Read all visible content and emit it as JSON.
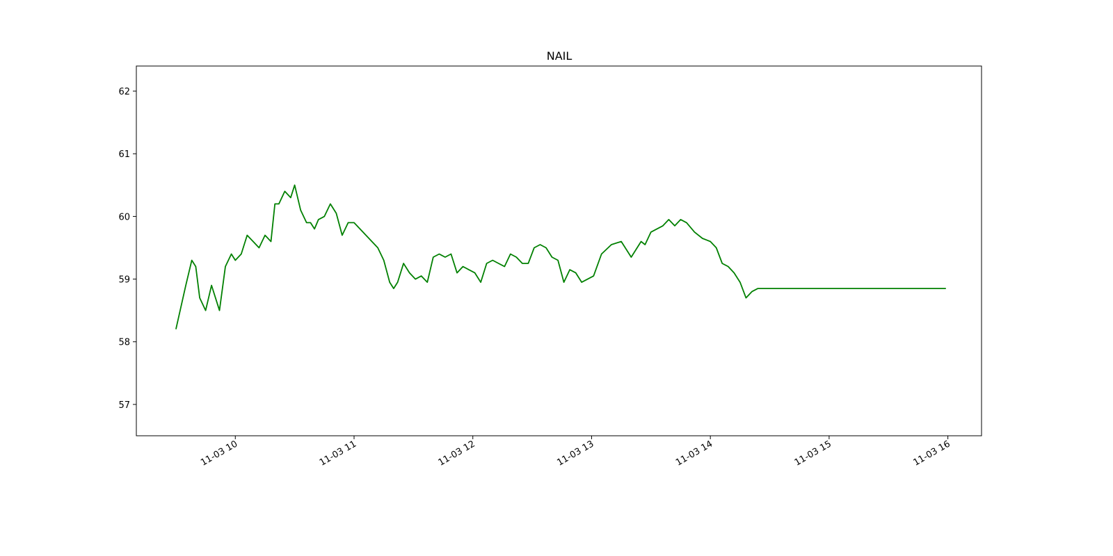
{
  "chart_data": {
    "type": "line",
    "title": "NAIL",
    "xlabel": "",
    "ylabel": "",
    "x_ticks": [
      "11-03 10",
      "11-03 11",
      "11-03 12",
      "11-03 13",
      "11-03 14",
      "11-03 15",
      "11-03 16"
    ],
    "x_range": [
      "11-03 09:10",
      "11-03 16:17"
    ],
    "ylim": [
      56.5,
      62.4
    ],
    "y_ticks": [
      "57",
      "58",
      "59",
      "60",
      "61",
      "62"
    ],
    "grid": false,
    "color": "#008000",
    "series": [
      {
        "x": [
          "11-03 09:30",
          "11-03 09:35",
          "11-03 09:38",
          "11-03 09:40",
          "11-03 09:42",
          "11-03 09:45",
          "11-03 09:48",
          "11-03 09:52",
          "11-03 09:55",
          "11-03 09:58",
          "11-03 10:00",
          "11-03 10:03",
          "11-03 10:06",
          "11-03 10:09",
          "11-03 10:12",
          "11-03 10:15",
          "11-03 10:18",
          "11-03 10:20",
          "11-03 10:22",
          "11-03 10:25",
          "11-03 10:28",
          "11-03 10:30",
          "11-03 10:33",
          "11-03 10:36",
          "11-03 10:38",
          "11-03 10:40",
          "11-03 10:42",
          "11-03 10:45",
          "11-03 10:48",
          "11-03 10:51",
          "11-03 10:54",
          "11-03 10:57",
          "11-03 11:00",
          "11-03 11:03",
          "11-03 11:06",
          "11-03 11:09",
          "11-03 11:12",
          "11-03 11:15",
          "11-03 11:18",
          "11-03 11:20",
          "11-03 11:22",
          "11-03 11:25",
          "11-03 11:28",
          "11-03 11:31",
          "11-03 11:34",
          "11-03 11:37",
          "11-03 11:40",
          "11-03 11:43",
          "11-03 11:46",
          "11-03 11:49",
          "11-03 11:52",
          "11-03 11:55",
          "11-03 11:58",
          "11-03 12:01",
          "11-03 12:04",
          "11-03 12:07",
          "11-03 12:10",
          "11-03 12:13",
          "11-03 12:16",
          "11-03 12:19",
          "11-03 12:22",
          "11-03 12:25",
          "11-03 12:28",
          "11-03 12:31",
          "11-03 12:34",
          "11-03 12:37",
          "11-03 12:40",
          "11-03 12:43",
          "11-03 12:46",
          "11-03 12:49",
          "11-03 12:52",
          "11-03 12:55",
          "11-03 12:58",
          "11-03 13:01",
          "11-03 13:05",
          "11-03 13:10",
          "11-03 13:15",
          "11-03 13:20",
          "11-03 13:25",
          "11-03 13:27",
          "11-03 13:30",
          "11-03 13:33",
          "11-03 13:36",
          "11-03 13:39",
          "11-03 13:42",
          "11-03 13:45",
          "11-03 13:48",
          "11-03 13:52",
          "11-03 13:56",
          "11-03 14:00",
          "11-03 14:03",
          "11-03 14:06",
          "11-03 14:09",
          "11-03 14:12",
          "11-03 14:15",
          "11-03 14:18",
          "11-03 14:21",
          "11-03 14:24",
          "11-03 14:27",
          "11-03 14:30",
          "11-03 14:33",
          "11-03 14:36",
          "11-03 14:39",
          "11-03 14:42",
          "11-03 14:45",
          "11-03 14:48",
          "11-03 14:51",
          "11-03 14:54",
          "11-03 14:57",
          "11-03 15:00",
          "11-03 15:03",
          "11-03 15:06",
          "11-03 15:09",
          "11-03 15:12",
          "11-03 15:15",
          "11-03 15:18",
          "11-03 15:21",
          "11-03 15:24",
          "11-03 15:27",
          "11-03 15:30",
          "11-03 15:33",
          "11-03 15:36",
          "11-03 15:39",
          "11-03 15:42",
          "11-03 15:45",
          "11-03 15:48",
          "11-03 15:51",
          "11-03 15:54",
          "11-03 15:57",
          "11-03 15:59"
        ],
        "y": [
          58.2,
          58.9,
          59.3,
          59.2,
          58.7,
          58.5,
          58.9,
          58.5,
          59.2,
          59.4,
          59.3,
          59.4,
          59.7,
          59.6,
          59.5,
          59.7,
          59.6,
          60.2,
          60.2,
          60.4,
          60.3,
          60.5,
          60.1,
          59.9,
          59.9,
          59.8,
          59.95,
          60.0,
          60.2,
          60.05,
          59.7,
          59.9,
          59.9,
          59.8,
          59.7,
          59.6,
          59.5,
          59.3,
          58.95,
          58.85,
          58.95,
          59.25,
          59.1,
          59.0,
          59.05,
          58.95,
          59.35,
          59.4,
          59.35,
          59.4,
          59.1,
          59.2,
          59.15,
          59.1,
          58.95,
          59.25,
          59.3,
          59.25,
          59.2,
          59.4,
          59.35,
          59.25,
          59.25,
          59.5,
          59.55,
          59.5,
          59.35,
          59.3,
          58.95,
          59.15,
          59.1,
          58.95,
          59.0,
          59.05,
          59.4,
          59.55,
          59.6,
          59.35,
          59.6,
          59.55,
          59.75,
          59.8,
          59.85,
          59.95,
          59.85,
          59.95,
          59.9,
          59.75,
          59.65,
          59.6,
          59.5,
          59.25,
          59.2,
          59.1,
          58.95,
          58.7,
          58.8,
          58.85,
          58.85,
          58.85,
          58.85,
          58.85,
          58.85,
          58.85,
          58.85,
          58.85,
          58.85,
          58.85,
          58.85,
          58.85,
          58.85,
          58.85,
          58.85,
          58.85,
          58.85,
          58.85,
          58.85,
          58.85,
          58.85,
          58.85,
          58.85,
          58.85,
          58.85,
          58.85,
          58.85,
          58.85,
          58.85,
          58.85,
          58.85,
          58.85
        ]
      }
    ]
  }
}
